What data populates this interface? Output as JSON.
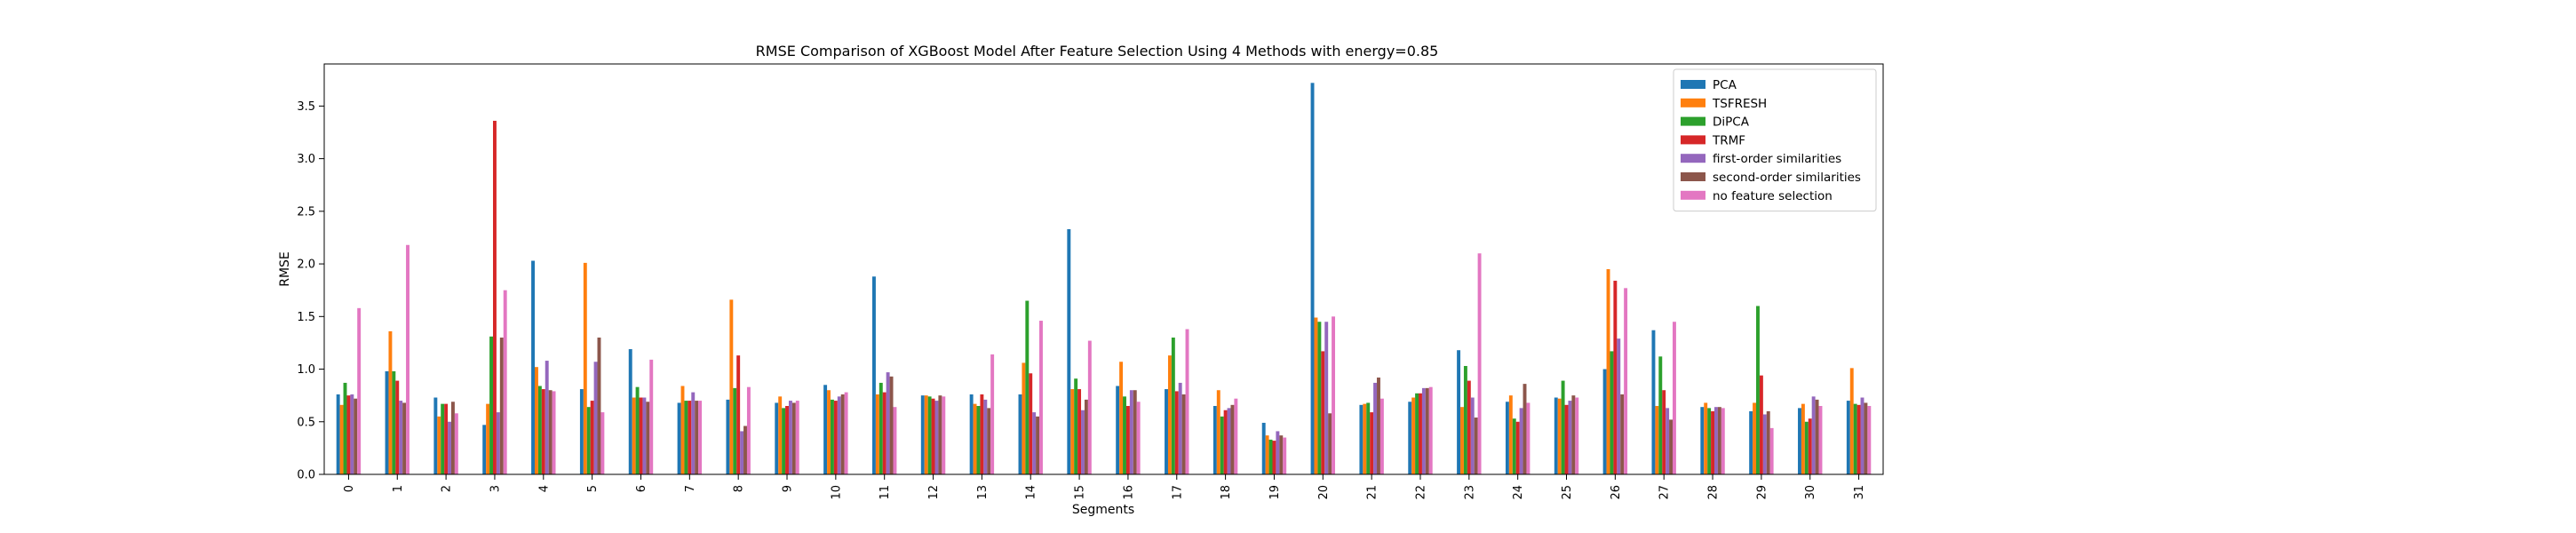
{
  "chart_data": {
    "type": "bar",
    "title": "RMSE Comparison of XGBoost Model After Feature Selection Using 4 Methods with energy=0.85",
    "xlabel": "Segments",
    "ylabel": "RMSE",
    "ylim": [
      0,
      3.9
    ],
    "yticks": [
      "0.0",
      "0.5",
      "1.0",
      "1.5",
      "2.0",
      "2.5",
      "3.0",
      "3.5"
    ],
    "legend_position": "top-right",
    "categories": [
      "0",
      "1",
      "2",
      "3",
      "4",
      "5",
      "6",
      "7",
      "8",
      "9",
      "10",
      "11",
      "12",
      "13",
      "14",
      "15",
      "16",
      "17",
      "18",
      "19",
      "20",
      "21",
      "22",
      "23",
      "24",
      "25",
      "26",
      "27",
      "28",
      "29",
      "30",
      "31"
    ],
    "series": [
      {
        "name": "PCA",
        "color": "#1f77b4",
        "values": [
          0.76,
          0.98,
          0.73,
          0.47,
          2.03,
          0.81,
          1.19,
          0.68,
          0.71,
          0.68,
          0.85,
          1.88,
          0.75,
          0.76,
          0.76,
          2.33,
          0.84,
          0.81,
          0.65,
          0.49,
          3.72,
          0.66,
          0.69,
          1.18,
          0.69,
          0.73,
          1.0,
          1.37,
          0.64,
          0.6,
          0.63,
          0.7
        ]
      },
      {
        "name": "TSFRESH",
        "color": "#ff7f0e",
        "values": [
          0.66,
          1.36,
          0.55,
          0.67,
          1.02,
          2.01,
          0.73,
          0.84,
          1.66,
          0.74,
          0.8,
          0.76,
          0.75,
          0.67,
          1.06,
          0.81,
          1.07,
          1.13,
          0.8,
          0.37,
          1.49,
          0.67,
          0.73,
          0.64,
          0.75,
          0.72,
          1.95,
          0.65,
          0.68,
          0.68,
          0.67,
          1.01
        ]
      },
      {
        "name": "DiPCA",
        "color": "#2ca02c",
        "values": [
          0.87,
          0.98,
          0.67,
          1.31,
          0.84,
          0.64,
          0.83,
          0.7,
          0.82,
          0.63,
          0.71,
          0.87,
          0.74,
          0.65,
          1.65,
          0.91,
          0.74,
          1.3,
          0.55,
          0.33,
          1.45,
          0.68,
          0.77,
          1.03,
          0.53,
          0.89,
          1.17,
          1.12,
          0.63,
          1.6,
          0.5,
          0.67
        ]
      },
      {
        "name": "TRMF",
        "color": "#d62728",
        "values": [
          0.75,
          0.89,
          0.67,
          3.36,
          0.81,
          0.7,
          0.73,
          0.7,
          1.13,
          0.65,
          0.7,
          0.78,
          0.72,
          0.76,
          0.96,
          0.81,
          0.65,
          0.79,
          0.61,
          0.32,
          1.17,
          0.59,
          0.77,
          0.89,
          0.5,
          0.66,
          1.84,
          0.8,
          0.6,
          0.94,
          0.53,
          0.66
        ]
      },
      {
        "name": "first-order similarities",
        "color": "#9467bd",
        "values": [
          0.76,
          0.7,
          0.5,
          0.59,
          1.08,
          1.07,
          0.73,
          0.78,
          0.41,
          0.7,
          0.74,
          0.97,
          0.7,
          0.71,
          0.59,
          0.61,
          0.8,
          0.87,
          0.63,
          0.41,
          1.45,
          0.87,
          0.82,
          0.73,
          0.63,
          0.7,
          1.29,
          0.63,
          0.64,
          0.57,
          0.74,
          0.73
        ]
      },
      {
        "name": "second-order similarities",
        "color": "#8c564b",
        "values": [
          0.72,
          0.68,
          0.69,
          1.3,
          0.8,
          1.3,
          0.69,
          0.7,
          0.46,
          0.68,
          0.76,
          0.93,
          0.75,
          0.63,
          0.55,
          0.71,
          0.8,
          0.76,
          0.66,
          0.37,
          0.58,
          0.92,
          0.82,
          0.54,
          0.86,
          0.75,
          0.76,
          0.52,
          0.64,
          0.6,
          0.71,
          0.68
        ]
      },
      {
        "name": "no feature selection",
        "color": "#e377c2",
        "values": [
          1.58,
          2.18,
          0.58,
          1.75,
          0.79,
          0.59,
          1.09,
          0.7,
          0.83,
          0.7,
          0.78,
          0.64,
          0.74,
          1.14,
          1.46,
          1.27,
          0.69,
          1.38,
          0.72,
          0.35,
          1.5,
          0.72,
          0.83,
          2.1,
          0.68,
          0.73,
          1.77,
          1.45,
          0.63,
          0.44,
          0.65,
          0.65
        ]
      }
    ]
  }
}
